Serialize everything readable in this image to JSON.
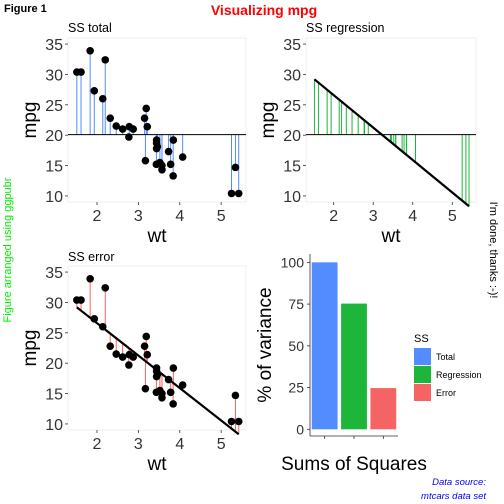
{
  "figure": {
    "tag": "Figure 1",
    "title": "Visualizing mpg",
    "left_label": "Figure arranged using ggpubr",
    "right_label": "I'm done, thanks :-)!",
    "caption_line1": "Data source:",
    "caption_line2": "mtcars data set",
    "colors": {
      "title": "#ff0000",
      "left_label": "#00ee00",
      "caption": "#0000ff",
      "total": "#528cff",
      "regression": "#1db53a",
      "error": "#f56464",
      "points": "#000000"
    }
  },
  "chart_data": [
    {
      "id": "ss-total",
      "type": "scatter",
      "title": "SS total",
      "xlabel": "wt",
      "ylabel": "mpg",
      "xlim": [
        1.3,
        5.6
      ],
      "ylim": [
        9,
        36
      ],
      "xticks": [
        2,
        3,
        4,
        5
      ],
      "yticks": [
        10,
        15,
        20,
        25,
        30,
        35
      ],
      "mean_line": 20.09,
      "segments": "to-mean",
      "segment_color": "#528cff",
      "show_points": true,
      "show_fit": false,
      "x": [
        2.62,
        2.875,
        2.32,
        3.215,
        3.44,
        3.46,
        3.57,
        3.19,
        3.15,
        3.44,
        3.44,
        4.07,
        3.73,
        3.78,
        5.25,
        5.424,
        5.345,
        2.2,
        1.615,
        1.835,
        2.465,
        3.52,
        3.435,
        3.84,
        3.845,
        1.935,
        2.14,
        1.513,
        3.17,
        2.77,
        3.57,
        2.78
      ],
      "y": [
        21.0,
        21.0,
        22.8,
        21.4,
        18.7,
        18.1,
        14.3,
        24.4,
        22.8,
        19.2,
        17.8,
        16.4,
        17.3,
        15.2,
        10.4,
        10.4,
        14.7,
        32.4,
        30.4,
        33.9,
        21.5,
        15.5,
        15.2,
        13.3,
        19.2,
        27.3,
        26.0,
        30.4,
        15.8,
        19.7,
        15.0,
        21.4
      ]
    },
    {
      "id": "ss-regression",
      "type": "line",
      "title": "SS regression",
      "xlabel": "wt",
      "ylabel": "mpg",
      "xlim": [
        1.3,
        5.6
      ],
      "ylim": [
        9,
        36
      ],
      "xticks": [
        2,
        3,
        4,
        5
      ],
      "yticks": [
        10,
        15,
        20,
        25,
        30,
        35
      ],
      "mean_line": 20.09,
      "segments": "fit-to-mean",
      "segment_color": "#1db53a",
      "show_points": false,
      "show_fit": true,
      "fit": {
        "intercept": 37.285,
        "slope": -5.344
      },
      "x": [
        2.62,
        2.875,
        2.32,
        3.215,
        3.44,
        3.46,
        3.57,
        3.19,
        3.15,
        3.44,
        3.44,
        4.07,
        3.73,
        3.78,
        5.25,
        5.424,
        5.345,
        2.2,
        1.615,
        1.835,
        2.465,
        3.52,
        3.435,
        3.84,
        3.845,
        1.935,
        2.14,
        1.513,
        3.17,
        2.77,
        3.57,
        2.78
      ],
      "y": [
        21.0,
        21.0,
        22.8,
        21.4,
        18.7,
        18.1,
        14.3,
        24.4,
        22.8,
        19.2,
        17.8,
        16.4,
        17.3,
        15.2,
        10.4,
        10.4,
        14.7,
        32.4,
        30.4,
        33.9,
        21.5,
        15.5,
        15.2,
        13.3,
        19.2,
        27.3,
        26.0,
        30.4,
        15.8,
        19.7,
        15.0,
        21.4
      ]
    },
    {
      "id": "ss-error",
      "type": "scatter",
      "title": "SS error",
      "xlabel": "wt",
      "ylabel": "mpg",
      "xlim": [
        1.3,
        5.6
      ],
      "ylim": [
        9,
        36
      ],
      "xticks": [
        2,
        3,
        4,
        5
      ],
      "yticks": [
        10,
        15,
        20,
        25,
        30,
        35
      ],
      "segments": "point-to-fit",
      "segment_color": "#f56464",
      "show_points": true,
      "show_fit": true,
      "fit": {
        "intercept": 37.285,
        "slope": -5.344
      },
      "x": [
        2.62,
        2.875,
        2.32,
        3.215,
        3.44,
        3.46,
        3.57,
        3.19,
        3.15,
        3.44,
        3.44,
        4.07,
        3.73,
        3.78,
        5.25,
        5.424,
        5.345,
        2.2,
        1.615,
        1.835,
        2.465,
        3.52,
        3.435,
        3.84,
        3.845,
        1.935,
        2.14,
        1.513,
        3.17,
        2.77,
        3.57,
        2.78
      ],
      "y": [
        21.0,
        21.0,
        22.8,
        21.4,
        18.7,
        18.1,
        14.3,
        24.4,
        22.8,
        19.2,
        17.8,
        16.4,
        17.3,
        15.2,
        10.4,
        10.4,
        14.7,
        32.4,
        30.4,
        33.9,
        21.5,
        15.5,
        15.2,
        13.3,
        19.2,
        27.3,
        26.0,
        30.4,
        15.8,
        19.7,
        15.0,
        21.4
      ]
    },
    {
      "id": "sums-of-squares",
      "type": "bar",
      "xlabel": "Sums of Squares",
      "ylabel": "% of variance",
      "ylim": [
        -4,
        105
      ],
      "yticks": [
        0,
        25,
        50,
        75,
        100
      ],
      "legend_title": "SS",
      "legend_position": "right",
      "categories": [
        "Total",
        "Regression",
        "Error"
      ],
      "values": [
        100,
        75.3,
        24.7
      ],
      "colors": [
        "#528cff",
        "#1db53a",
        "#f56464"
      ]
    }
  ]
}
